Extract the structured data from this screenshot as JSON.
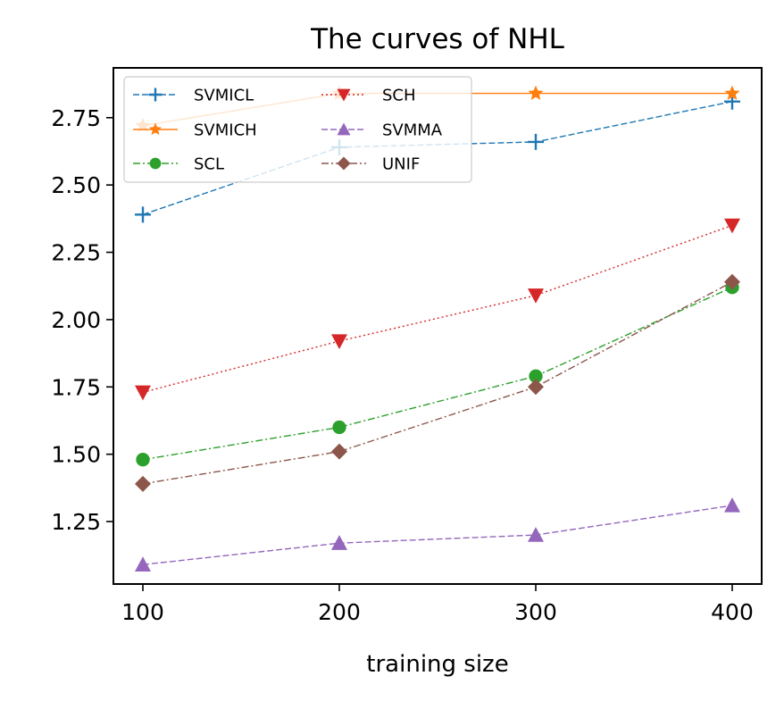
{
  "chart_data": {
    "type": "line",
    "title": "The curves of NHL",
    "xlabel": "training size",
    "ylabel": "",
    "x": [
      100,
      200,
      300,
      400
    ],
    "xlim": [
      85,
      415
    ],
    "ylim": [
      1.018,
      2.935
    ],
    "xticks": [
      100,
      200,
      300,
      400
    ],
    "xtick_labels": [
      "100",
      "200",
      "300",
      "400"
    ],
    "yticks": [
      1.25,
      1.5,
      1.75,
      2.0,
      2.25,
      2.5,
      2.75
    ],
    "ytick_labels": [
      "1.25",
      "1.50",
      "1.75",
      "2.00",
      "2.25",
      "2.50",
      "2.75"
    ],
    "grid": false,
    "legend_position": "top-left",
    "series": [
      {
        "name": "SVMICL",
        "values": [
          2.39,
          2.64,
          2.66,
          2.81
        ],
        "color": "#1f77b4",
        "marker": "plus",
        "linestyle": "dashed"
      },
      {
        "name": "SVMICH",
        "values": [
          2.72,
          2.84,
          2.84,
          2.84
        ],
        "color": "#ff7f0e",
        "marker": "star",
        "linestyle": "solid"
      },
      {
        "name": "SCL",
        "values": [
          1.48,
          1.6,
          1.79,
          2.12
        ],
        "color": "#2ca02c",
        "marker": "circle",
        "linestyle": "dashdot"
      },
      {
        "name": "SCH",
        "values": [
          1.73,
          1.92,
          2.09,
          2.35
        ],
        "color": "#d62728",
        "marker": "triangle-down",
        "linestyle": "dotted"
      },
      {
        "name": "SVMMA",
        "values": [
          1.09,
          1.17,
          1.2,
          1.31
        ],
        "color": "#9467bd",
        "marker": "triangle-up",
        "linestyle": "dashed"
      },
      {
        "name": "UNIF",
        "values": [
          1.39,
          1.51,
          1.75,
          2.14
        ],
        "color": "#8c564b",
        "marker": "diamond",
        "linestyle": "dashdot"
      }
    ]
  }
}
